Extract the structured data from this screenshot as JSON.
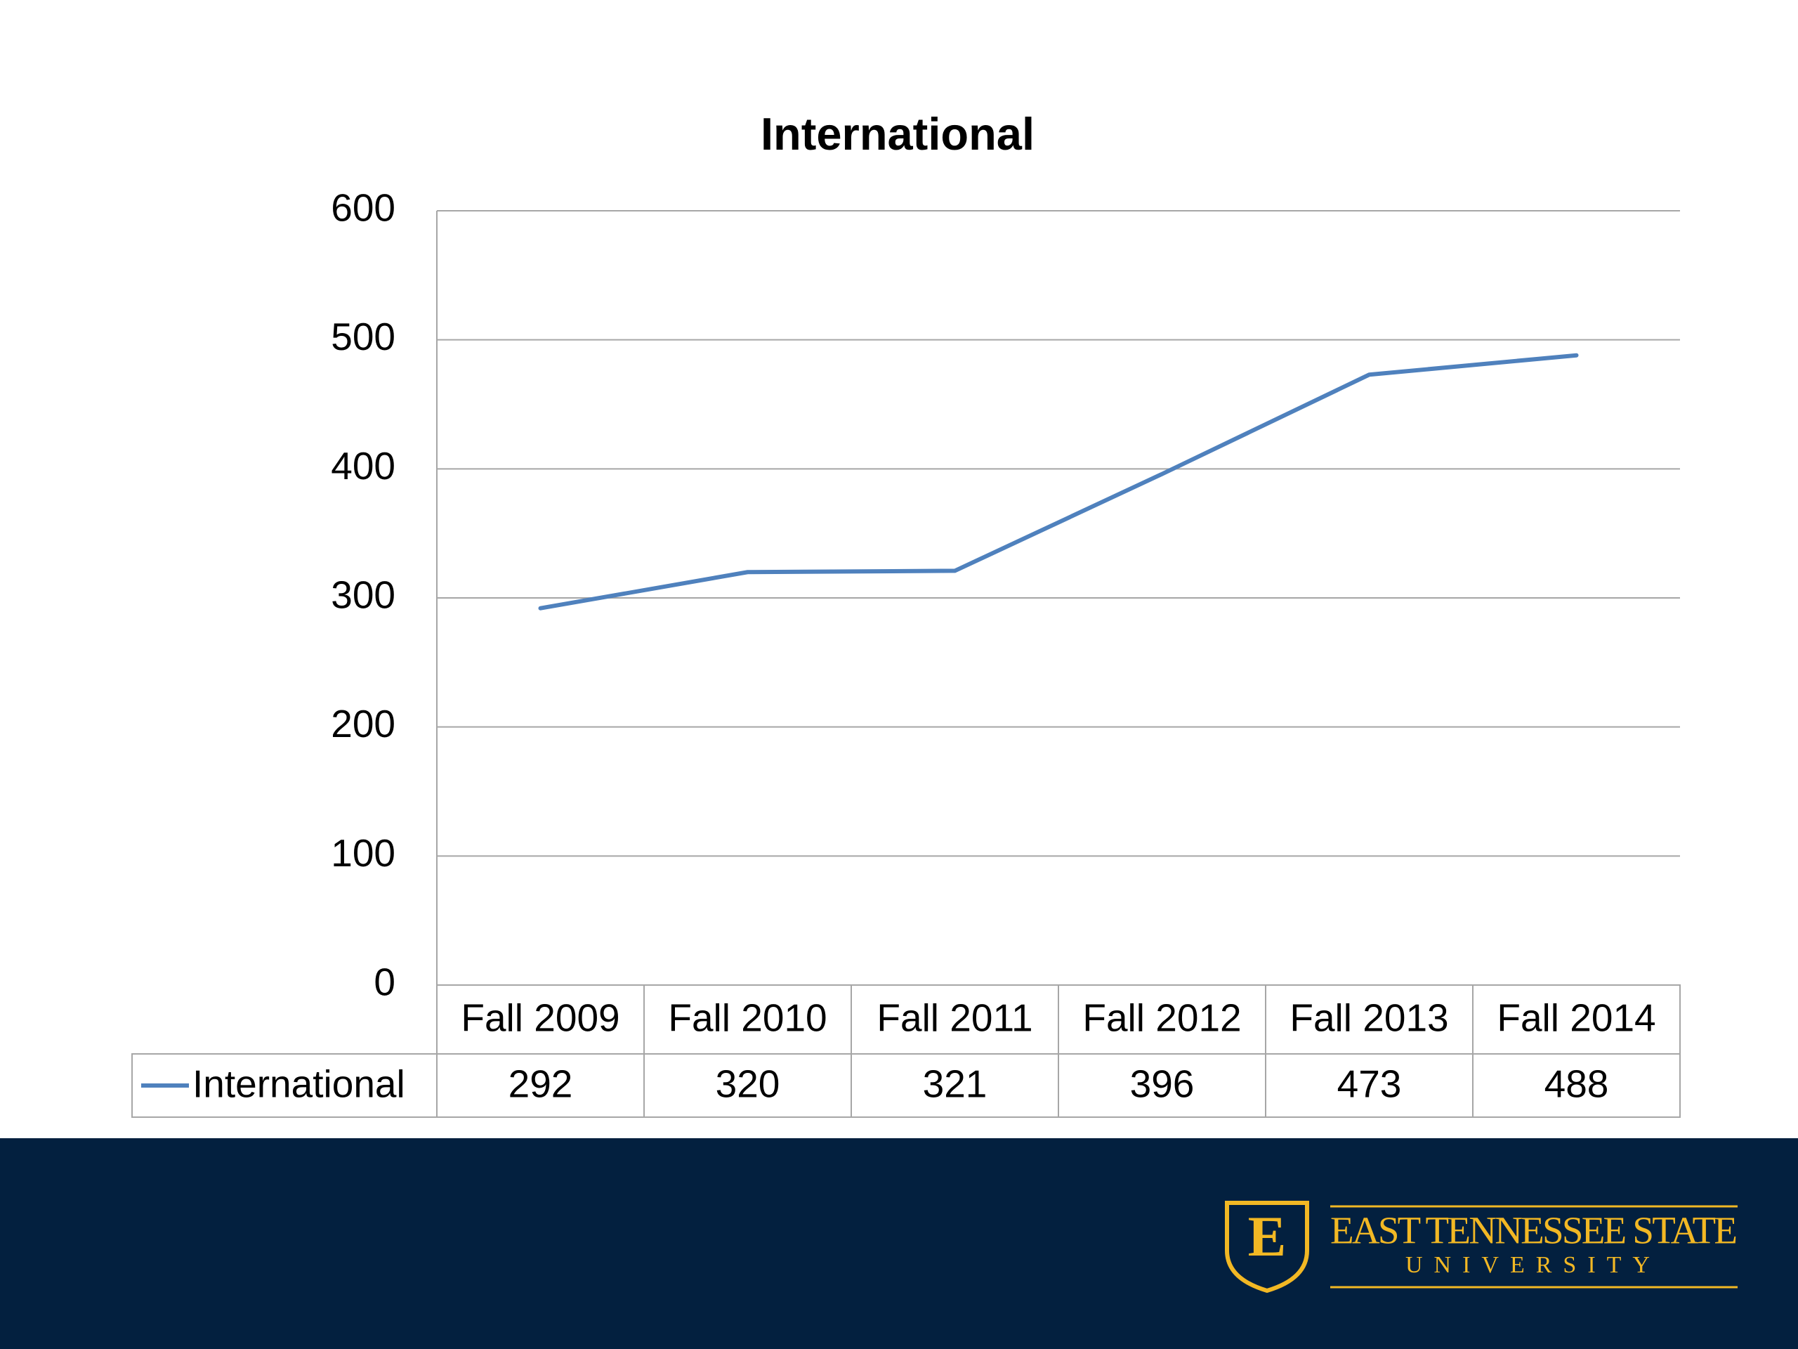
{
  "chart_data": {
    "type": "line",
    "title": "International",
    "categories": [
      "Fall 2009",
      "Fall 2010",
      "Fall 2011",
      "Fall 2012",
      "Fall 2013",
      "Fall 2014"
    ],
    "series": [
      {
        "name": "International",
        "color": "#4f81bd",
        "values": [
          292,
          320,
          321,
          396,
          473,
          488
        ]
      }
    ],
    "ylim": [
      0,
      600
    ],
    "yticks": [
      0,
      100,
      200,
      300,
      400,
      500,
      600
    ],
    "grid": true,
    "data_table": true
  },
  "logo": {
    "mark": "E",
    "line1": "EAST TENNESSEE STATE",
    "line2": "UNIVERSITY"
  }
}
